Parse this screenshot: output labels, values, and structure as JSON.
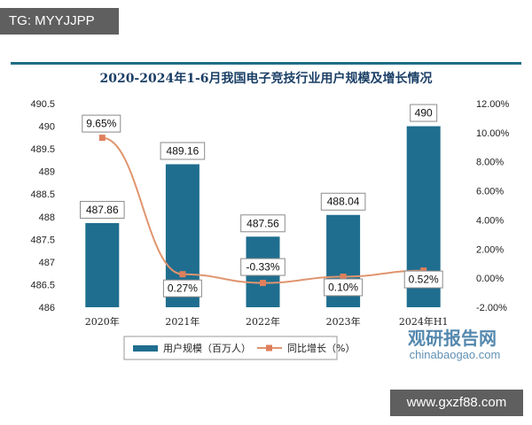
{
  "watermark_top": "TG: MYYJJPP",
  "watermark_site": "www.gxzf88.com",
  "watermark_brand": {
    "name": "观研报告网",
    "url": "chinabaogao.com"
  },
  "colors": {
    "bar": "#1f6e8f",
    "line": "#e0956f",
    "marker": "#e07f5c",
    "title": "#1b3f66"
  },
  "chart_data": {
    "type": "bar",
    "title": "2020-2024年1-6月我国电子竞技行业用户规模及增长情况",
    "categories": [
      "2020年",
      "2021年",
      "2022年",
      "2023年",
      "2024年H1"
    ],
    "series": [
      {
        "name": "用户规模（百万人）",
        "type": "bar",
        "axis": "left",
        "values": [
          487.86,
          489.16,
          487.56,
          488.04,
          490
        ],
        "labels": [
          "487.86",
          "489.16",
          "487.56",
          "488.04",
          "490"
        ]
      },
      {
        "name": "同比增长（%）",
        "type": "line",
        "axis": "right",
        "values": [
          9.65,
          0.27,
          -0.33,
          0.1,
          0.52
        ],
        "labels": [
          "9.65%",
          "0.27%",
          "-0.33%",
          "0.10%",
          "0.52%"
        ]
      }
    ],
    "y_left": {
      "min": 486,
      "max": 490.5,
      "step": 0.5,
      "ticks": [
        "486",
        "486.5",
        "487",
        "487.5",
        "488",
        "488.5",
        "489",
        "489.5",
        "490",
        "490.5"
      ]
    },
    "y_right": {
      "min": -2,
      "max": 12,
      "step": 2,
      "ticks": [
        "-2.00%",
        "0.00%",
        "2.00%",
        "4.00%",
        "6.00%",
        "8.00%",
        "10.00%",
        "12.00%"
      ]
    },
    "legend_position": "bottom",
    "grid": false
  }
}
